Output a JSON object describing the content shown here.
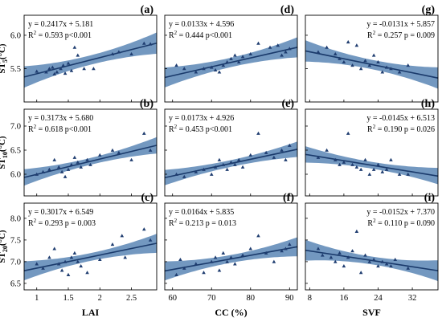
{
  "colors": {
    "line": "#1a3a6b",
    "band": "#5b86b5",
    "points": "#1f3d70",
    "frame": "#000000"
  },
  "chart_data": [
    {
      "type": "scatter",
      "panel": "a",
      "row": 0,
      "col": 0,
      "equation": "y = 0.2417x + 5.181",
      "r2_text": "R",
      "r2_sup": "2",
      "r2_rest": " = 0.593 p<0.001",
      "ylabel": {
        "main": "ST",
        "sub": "5",
        "unit": "(°C)"
      },
      "xlim": [
        0.8,
        2.9
      ],
      "ylim": [
        5.0,
        6.3
      ],
      "yticks": [
        5.5,
        6.0
      ],
      "xticks": [
        1.0,
        1.5,
        2.0,
        2.5
      ],
      "fit": {
        "slope": 0.2417,
        "intercept": 5.181,
        "band_mid": 0.07,
        "band_end": 0.16
      },
      "points": [
        [
          1.0,
          5.46
        ],
        [
          1.15,
          5.45
        ],
        [
          1.2,
          5.5
        ],
        [
          1.25,
          5.52
        ],
        [
          1.28,
          5.42
        ],
        [
          1.32,
          5.45
        ],
        [
          1.38,
          5.5
        ],
        [
          1.42,
          5.55
        ],
        [
          1.45,
          5.43
        ],
        [
          1.5,
          5.58
        ],
        [
          1.55,
          5.47
        ],
        [
          1.6,
          5.82
        ],
        [
          1.65,
          5.7
        ],
        [
          1.75,
          5.5
        ],
        [
          1.9,
          5.5
        ],
        [
          2.2,
          5.72
        ],
        [
          2.3,
          5.75
        ],
        [
          2.5,
          5.72
        ],
        [
          2.7,
          5.88
        ],
        [
          2.8,
          5.87
        ]
      ]
    },
    {
      "type": "scatter",
      "panel": "d",
      "row": 0,
      "col": 1,
      "equation": "y = 0.0133x + 4.596",
      "r2_text": "R",
      "r2_sup": "2",
      "r2_rest": " = 0.444 p<0.001",
      "xlim": [
        58,
        92
      ],
      "ylim": [
        5.0,
        6.3
      ],
      "yticks": [
        5.5,
        6.0
      ],
      "xticks": [
        60,
        70,
        80,
        90
      ],
      "fit": {
        "slope": 0.0133,
        "intercept": 4.596,
        "band_mid": 0.07,
        "band_end": 0.15
      },
      "points": [
        [
          61,
          5.55
        ],
        [
          63,
          5.5
        ],
        [
          66,
          5.45
        ],
        [
          68,
          5.5
        ],
        [
          70,
          5.52
        ],
        [
          71,
          5.48
        ],
        [
          72,
          5.45
        ],
        [
          73,
          5.55
        ],
        [
          74,
          5.6
        ],
        [
          75,
          5.65
        ],
        [
          76,
          5.7
        ],
        [
          77,
          5.6
        ],
        [
          78,
          5.68
        ],
        [
          80,
          5.72
        ],
        [
          82,
          5.88
        ],
        [
          85,
          5.82
        ],
        [
          87,
          5.85
        ],
        [
          88,
          5.7
        ],
        [
          89,
          5.75
        ],
        [
          90,
          5.8
        ]
      ]
    },
    {
      "type": "scatter",
      "panel": "g",
      "row": 0,
      "col": 2,
      "equation": "y = -0.0131x + 5.857",
      "r2_text": "R",
      "r2_sup": "2",
      "r2_rest": " = 0.257 p = 0.009",
      "xlim": [
        7,
        38
      ],
      "ylim": [
        5.0,
        6.3
      ],
      "yticks": [
        5.5,
        6.0
      ],
      "xticks": [
        8,
        16,
        24,
        32
      ],
      "fit": {
        "slope": -0.0131,
        "intercept": 5.857,
        "band_mid": 0.07,
        "band_end": 0.16
      },
      "points": [
        [
          10,
          5.75
        ],
        [
          12,
          5.82
        ],
        [
          14,
          5.72
        ],
        [
          15,
          5.65
        ],
        [
          16,
          5.6
        ],
        [
          17,
          5.9
        ],
        [
          18,
          5.55
        ],
        [
          19,
          5.85
        ],
        [
          20,
          5.5
        ],
        [
          21,
          5.62
        ],
        [
          22,
          5.55
        ],
        [
          23,
          5.7
        ],
        [
          24,
          5.6
        ],
        [
          25,
          5.45
        ],
        [
          26,
          5.52
        ],
        [
          27,
          5.5
        ],
        [
          29,
          5.45
        ],
        [
          31,
          5.55
        ]
      ]
    },
    {
      "type": "scatter",
      "panel": "b",
      "row": 1,
      "col": 0,
      "equation": "y = 0.3173x + 5.680",
      "r2_text": "R",
      "r2_sup": "2",
      "r2_rest": " = 0.618 p<0.001",
      "ylabel": {
        "main": "ST",
        "sub": "10",
        "unit": "(°C)"
      },
      "xlim": [
        0.8,
        2.9
      ],
      "ylim": [
        5.55,
        7.35
      ],
      "yticks": [
        6.0,
        6.5,
        7.0
      ],
      "xticks": [
        1.0,
        1.5,
        2.0,
        2.5
      ],
      "fit": {
        "slope": 0.3173,
        "intercept": 5.68,
        "band_mid": 0.07,
        "band_end": 0.17
      },
      "points": [
        [
          1.0,
          6.0
        ],
        [
          1.1,
          6.05
        ],
        [
          1.2,
          6.1
        ],
        [
          1.28,
          6.3
        ],
        [
          1.35,
          6.15
        ],
        [
          1.4,
          6.05
        ],
        [
          1.45,
          5.95
        ],
        [
          1.5,
          6.1
        ],
        [
          1.55,
          6.2
        ],
        [
          1.6,
          6.35
        ],
        [
          1.65,
          6.25
        ],
        [
          1.7,
          6.15
        ],
        [
          1.8,
          6.3
        ],
        [
          1.85,
          6.2
        ],
        [
          2.0,
          6.4
        ],
        [
          2.2,
          6.5
        ],
        [
          2.3,
          6.45
        ],
        [
          2.5,
          6.3
        ],
        [
          2.7,
          6.85
        ],
        [
          2.8,
          6.5
        ]
      ]
    },
    {
      "type": "scatter",
      "panel": "e",
      "row": 1,
      "col": 1,
      "equation": "y = 0.0173x + 4.926",
      "r2_text": "R",
      "r2_sup": "2",
      "r2_rest": " = 0.453 p<0.001",
      "xlim": [
        58,
        92
      ],
      "ylim": [
        5.55,
        7.35
      ],
      "yticks": [
        6.0,
        6.5,
        7.0
      ],
      "xticks": [
        60,
        70,
        80,
        90
      ],
      "fit": {
        "slope": 0.0173,
        "intercept": 4.926,
        "band_mid": 0.07,
        "band_end": 0.16
      },
      "points": [
        [
          61,
          6.0
        ],
        [
          63,
          5.95
        ],
        [
          66,
          6.05
        ],
        [
          68,
          6.1
        ],
        [
          70,
          6.0
        ],
        [
          71,
          6.15
        ],
        [
          72,
          6.3
        ],
        [
          73,
          6.2
        ],
        [
          74,
          6.1
        ],
        [
          75,
          6.25
        ],
        [
          76,
          6.2
        ],
        [
          77,
          6.3
        ],
        [
          78,
          6.15
        ],
        [
          80,
          6.4
        ],
        [
          82,
          6.85
        ],
        [
          84,
          6.45
        ],
        [
          86,
          6.35
        ],
        [
          88,
          6.5
        ],
        [
          89,
          6.3
        ],
        [
          90,
          6.6
        ]
      ]
    },
    {
      "type": "scatter",
      "panel": "h",
      "row": 1,
      "col": 2,
      "equation": "y = -0.0145x + 6.513",
      "r2_text": "R",
      "r2_sup": "2",
      "r2_rest": " = 0.190 p = 0.026",
      "xlim": [
        7,
        38
      ],
      "ylim": [
        5.55,
        7.35
      ],
      "yticks": [
        6.0,
        6.5,
        7.0
      ],
      "xticks": [
        8,
        16,
        24,
        32
      ],
      "fit": {
        "slope": -0.0145,
        "intercept": 6.513,
        "band_mid": 0.07,
        "band_end": 0.17
      },
      "points": [
        [
          10,
          6.35
        ],
        [
          12,
          6.5
        ],
        [
          14,
          6.3
        ],
        [
          15,
          6.2
        ],
        [
          16,
          6.25
        ],
        [
          17,
          6.85
        ],
        [
          18,
          6.2
        ],
        [
          19,
          6.15
        ],
        [
          20,
          6.1
        ],
        [
          21,
          6.3
        ],
        [
          22,
          6.0
        ],
        [
          23,
          6.1
        ],
        [
          24,
          6.2
        ],
        [
          25,
          6.05
        ],
        [
          26,
          6.1
        ],
        [
          27,
          6.3
        ],
        [
          29,
          6.0
        ],
        [
          31,
          6.0
        ]
      ]
    },
    {
      "type": "scatter",
      "panel": "c",
      "row": 2,
      "col": 0,
      "equation": "y = 0.3017x + 6.549",
      "r2_text": "R",
      "r2_sup": "2",
      "r2_rest": " = 0.293 p = 0.003",
      "ylabel": {
        "main": "ST",
        "sub": "20",
        "unit": "(°C)"
      },
      "xlim": [
        0.8,
        2.9
      ],
      "ylim": [
        6.35,
        8.35
      ],
      "yticks": [
        6.5,
        7.0,
        7.5,
        8.0
      ],
      "xticks": [
        1.0,
        1.5,
        2.0,
        2.5
      ],
      "xlabel": "LAI",
      "fit": {
        "slope": 0.3017,
        "intercept": 6.549,
        "band_mid": 0.09,
        "band_end": 0.22
      },
      "points": [
        [
          1.0,
          6.95
        ],
        [
          1.1,
          6.85
        ],
        [
          1.2,
          7.1
        ],
        [
          1.28,
          7.3
        ],
        [
          1.35,
          6.95
        ],
        [
          1.4,
          6.8
        ],
        [
          1.45,
          7.0
        ],
        [
          1.5,
          6.7
        ],
        [
          1.55,
          7.1
        ],
        [
          1.6,
          7.2
        ],
        [
          1.65,
          7.0
        ],
        [
          1.7,
          6.9
        ],
        [
          1.8,
          6.75
        ],
        [
          2.0,
          7.05
        ],
        [
          2.2,
          7.4
        ],
        [
          2.35,
          7.6
        ],
        [
          2.4,
          7.1
        ],
        [
          2.7,
          7.75
        ],
        [
          2.8,
          7.5
        ]
      ]
    },
    {
      "type": "scatter",
      "panel": "f",
      "row": 2,
      "col": 1,
      "equation": "y = 0.0164x + 5.835",
      "r2_text": "R",
      "r2_sup": "2",
      "r2_rest": " = 0.213 p = 0.013",
      "xlim": [
        58,
        92
      ],
      "ylim": [
        6.35,
        8.35
      ],
      "yticks": [
        6.5,
        7.0,
        7.5,
        8.0
      ],
      "xticks": [
        60,
        70,
        80,
        90
      ],
      "xlabel": "CC (%)",
      "fit": {
        "slope": 0.0164,
        "intercept": 5.835,
        "band_mid": 0.09,
        "band_end": 0.22
      },
      "points": [
        [
          61,
          6.7
        ],
        [
          62,
          7.05
        ],
        [
          63,
          6.85
        ],
        [
          66,
          6.95
        ],
        [
          68,
          6.75
        ],
        [
          70,
          7.0
        ],
        [
          71,
          7.1
        ],
        [
          72,
          6.8
        ],
        [
          73,
          7.2
        ],
        [
          74,
          7.0
        ],
        [
          75,
          7.1
        ],
        [
          76,
          6.95
        ],
        [
          78,
          7.15
        ],
        [
          80,
          7.3
        ],
        [
          82,
          7.6
        ],
        [
          84,
          7.2
        ],
        [
          86,
          7.0
        ],
        [
          88,
          7.25
        ],
        [
          89,
          7.3
        ],
        [
          90,
          7.4
        ]
      ]
    },
    {
      "type": "scatter",
      "panel": "i",
      "row": 2,
      "col": 2,
      "equation": "y = -0.0152x + 7.370",
      "r2_text": "R",
      "r2_sup": "2",
      "r2_rest": " = 0.110 p = 0.090",
      "xlim": [
        7,
        38
      ],
      "ylim": [
        6.35,
        8.35
      ],
      "yticks": [
        6.5,
        7.0,
        7.5,
        8.0
      ],
      "xticks": [
        8,
        16,
        24,
        32
      ],
      "xlabel": "SVF",
      "fit": {
        "slope": -0.0152,
        "intercept": 7.37,
        "band_mid": 0.09,
        "band_end": 0.24
      },
      "points": [
        [
          10,
          7.3
        ],
        [
          11,
          7.15
        ],
        [
          13,
          7.1
        ],
        [
          14,
          7.0
        ],
        [
          15,
          7.2
        ],
        [
          16,
          6.9
        ],
        [
          17,
          7.1
        ],
        [
          18,
          7.25
        ],
        [
          19,
          7.7
        ],
        [
          20,
          6.75
        ],
        [
          21,
          7.15
        ],
        [
          22,
          7.0
        ],
        [
          23,
          7.05
        ],
        [
          24,
          6.9
        ],
        [
          25,
          7.0
        ],
        [
          26,
          6.95
        ],
        [
          27,
          6.9
        ],
        [
          28,
          7.05
        ],
        [
          31,
          6.85
        ]
      ]
    }
  ]
}
